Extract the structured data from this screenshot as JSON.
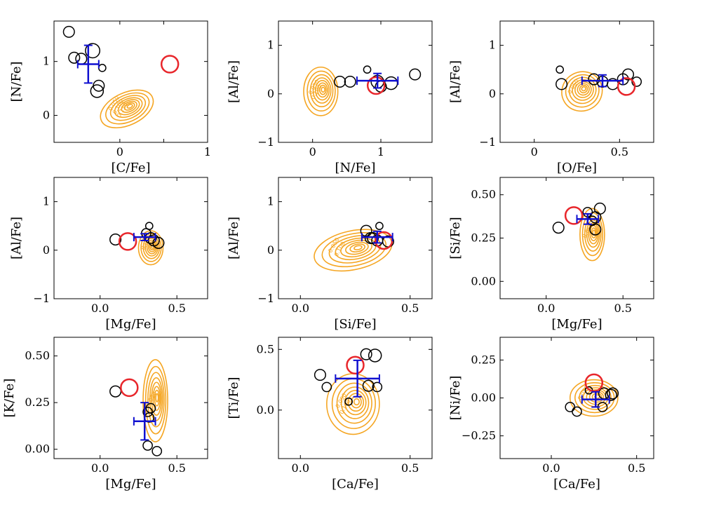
{
  "colors": {
    "contour": "#f5a623",
    "stars": "#000000",
    "highlight": "#e8262b",
    "mean": "#1010d0",
    "frame": "#000000"
  },
  "chart_data": [
    {
      "type": "scatter",
      "xlabel": "[C/Fe]",
      "ylabel": "[N/Fe]",
      "xlim": [
        -0.75,
        1.0
      ],
      "ylim": [
        -0.5,
        1.75
      ],
      "xticks": [
        0,
        0.5,
        1
      ],
      "xticklabels": [
        "0",
        "",
        "1"
      ],
      "yticks": [
        0,
        1
      ],
      "yticklabels": [
        "0",
        "1"
      ],
      "points": [
        {
          "x": -0.58,
          "y": 1.55,
          "size": 0.8
        },
        {
          "x": -0.52,
          "y": 1.07,
          "size": 0.8
        },
        {
          "x": -0.44,
          "y": 1.05,
          "size": 0.8
        },
        {
          "x": -0.31,
          "y": 1.2,
          "size": 1.2
        },
        {
          "x": -0.24,
          "y": 0.55,
          "size": 0.8
        },
        {
          "x": -0.26,
          "y": 0.45,
          "size": 1.0
        },
        {
          "x": -0.2,
          "y": 0.88,
          "size": 0.35
        }
      ],
      "highlight": {
        "x": 0.57,
        "y": 0.95
      },
      "mean": {
        "x": -0.36,
        "y": 0.95,
        "xerr": 0.12,
        "yerr": 0.35
      },
      "contour": {
        "cx": 0.08,
        "cy": 0.12,
        "rx": 0.32,
        "ry": 0.3,
        "angle": -25
      },
      "contour_labels": [
        "0.050",
        "0.100",
        "0.150"
      ]
    },
    {
      "type": "scatter",
      "xlabel": "[N/Fe]",
      "ylabel": "[Al/Fe]",
      "xlim": [
        -0.5,
        1.75
      ],
      "ylim": [
        -1.0,
        1.5
      ],
      "xticks": [
        0,
        1
      ],
      "xticklabels": [
        "0",
        "1"
      ],
      "yticks": [
        -1,
        0,
        1
      ],
      "yticklabels": [
        "−1",
        "0",
        "1"
      ],
      "points": [
        {
          "x": 0.4,
          "y": 0.25,
          "size": 0.8
        },
        {
          "x": 0.55,
          "y": 0.25,
          "size": 0.8
        },
        {
          "x": 0.8,
          "y": 0.5,
          "size": 0.35
        },
        {
          "x": 0.95,
          "y": 0.25,
          "size": 1.0
        },
        {
          "x": 1.0,
          "y": 0.15,
          "size": 0.8
        },
        {
          "x": 1.15,
          "y": 0.22,
          "size": 1.0
        },
        {
          "x": 1.5,
          "y": 0.4,
          "size": 0.8
        }
      ],
      "highlight": {
        "x": 0.93,
        "y": 0.17
      },
      "mean": {
        "x": 0.95,
        "y": 0.27,
        "xerr": 0.3,
        "yerr": 0.15
      },
      "contour": {
        "cx": 0.12,
        "cy": 0.05,
        "rx": 0.25,
        "ry": 0.5,
        "angle": 0
      },
      "contour_labels": [
        "0.050",
        "0.100"
      ]
    },
    {
      "type": "scatter",
      "xlabel": "[O/Fe]",
      "ylabel": "[Al/Fe]",
      "xlim": [
        -0.2,
        0.7
      ],
      "ylim": [
        -1.0,
        1.5
      ],
      "xticks": [
        0,
        0.5
      ],
      "xticklabels": [
        "0",
        "0.5"
      ],
      "yticks": [
        -1,
        0,
        1
      ],
      "yticklabels": [
        "−1",
        "0",
        "1"
      ],
      "points": [
        {
          "x": 0.16,
          "y": 0.2,
          "size": 0.8
        },
        {
          "x": 0.15,
          "y": 0.5,
          "size": 0.35
        },
        {
          "x": 0.35,
          "y": 0.3,
          "size": 0.8
        },
        {
          "x": 0.4,
          "y": 0.25,
          "size": 0.8
        },
        {
          "x": 0.46,
          "y": 0.2,
          "size": 0.8
        },
        {
          "x": 0.52,
          "y": 0.3,
          "size": 0.8
        },
        {
          "x": 0.55,
          "y": 0.4,
          "size": 0.8
        },
        {
          "x": 0.6,
          "y": 0.25,
          "size": 0.6
        }
      ],
      "highlight": {
        "x": 0.54,
        "y": 0.15
      },
      "mean": {
        "x": 0.4,
        "y": 0.27,
        "xerr": 0.12,
        "yerr": 0.12
      },
      "contour": {
        "cx": 0.28,
        "cy": 0.05,
        "rx": 0.12,
        "ry": 0.4,
        "angle": -30
      },
      "contour_labels": [
        "0.050"
      ]
    },
    {
      "type": "scatter",
      "xlabel": "[Mg/Fe]",
      "ylabel": "[Al/Fe]",
      "xlim": [
        -0.3,
        0.7
      ],
      "ylim": [
        -1.0,
        1.5
      ],
      "xticks": [
        0,
        0.5
      ],
      "xticklabels": [
        "0.0",
        "0.5"
      ],
      "yticks": [
        -1,
        0,
        1
      ],
      "yticklabels": [
        "−1",
        "0",
        "1"
      ],
      "points": [
        {
          "x": 0.1,
          "y": 0.22,
          "size": 0.8
        },
        {
          "x": 0.3,
          "y": 0.35,
          "size": 0.6
        },
        {
          "x": 0.32,
          "y": 0.5,
          "size": 0.35
        },
        {
          "x": 0.33,
          "y": 0.25,
          "size": 0.8
        },
        {
          "x": 0.35,
          "y": 0.2,
          "size": 0.8
        },
        {
          "x": 0.38,
          "y": 0.15,
          "size": 0.8
        }
      ],
      "highlight": {
        "x": 0.18,
        "y": 0.18
      },
      "mean": {
        "x": 0.29,
        "y": 0.27,
        "xerr": 0.07,
        "yerr": 0.07
      },
      "contour": {
        "cx": 0.33,
        "cy": 0.05,
        "rx": 0.08,
        "ry": 0.35,
        "angle": 0
      },
      "contour_labels": [
        "0.050"
      ]
    },
    {
      "type": "scatter",
      "xlabel": "[Si/Fe]",
      "ylabel": "[Al/Fe]",
      "xlim": [
        -0.1,
        0.6
      ],
      "ylim": [
        -1.0,
        1.5
      ],
      "xticks": [
        0,
        0.5
      ],
      "xticklabels": [
        "0.0",
        "0.5"
      ],
      "yticks": [
        -1,
        0,
        1
      ],
      "yticklabels": [
        "−1",
        "0",
        "1"
      ],
      "points": [
        {
          "x": 0.3,
          "y": 0.4,
          "size": 0.8
        },
        {
          "x": 0.33,
          "y": 0.25,
          "size": 0.8
        },
        {
          "x": 0.36,
          "y": 0.5,
          "size": 0.35
        },
        {
          "x": 0.35,
          "y": 0.2,
          "size": 0.8
        },
        {
          "x": 0.4,
          "y": 0.18,
          "size": 0.8
        },
        {
          "x": 0.32,
          "y": 0.25,
          "size": 0.8
        }
      ],
      "highlight": {
        "x": 0.38,
        "y": 0.2
      },
      "mean": {
        "x": 0.35,
        "y": 0.27,
        "xerr": 0.07,
        "yerr": 0.12
      },
      "contour": {
        "cx": 0.24,
        "cy": 0.0,
        "rx": 0.18,
        "ry": 0.4,
        "angle": -12
      },
      "contour_labels": [
        "0.050",
        "0.100"
      ]
    },
    {
      "type": "scatter",
      "xlabel": "[Mg/Fe]",
      "ylabel": "[Si/Fe]",
      "xlim": [
        -0.3,
        0.7
      ],
      "ylim": [
        -0.1,
        0.6
      ],
      "xticks": [
        0,
        0.5
      ],
      "xticklabels": [
        "0.0",
        "0.5"
      ],
      "yticks": [
        0,
        0.25,
        0.5
      ],
      "yticklabels": [
        "0.00",
        "0.25",
        "0.50"
      ],
      "points": [
        {
          "x": 0.08,
          "y": 0.31,
          "size": 0.8
        },
        {
          "x": 0.27,
          "y": 0.4,
          "size": 0.6
        },
        {
          "x": 0.3,
          "y": 0.35,
          "size": 0.6
        },
        {
          "x": 0.32,
          "y": 0.3,
          "size": 0.8
        },
        {
          "x": 0.32,
          "y": 0.37,
          "size": 0.8
        },
        {
          "x": 0.35,
          "y": 0.42,
          "size": 0.8
        }
      ],
      "highlight": {
        "x": 0.18,
        "y": 0.38
      },
      "mean": {
        "x": 0.27,
        "y": 0.36,
        "xerr": 0.07,
        "yerr": 0.03
      },
      "contour": {
        "cx": 0.3,
        "cy": 0.27,
        "rx": 0.08,
        "ry": 0.15,
        "angle": 0
      },
      "contour_labels": [
        "0.050"
      ]
    },
    {
      "type": "scatter",
      "xlabel": "[Mg/Fe]",
      "ylabel": "[K/Fe]",
      "xlim": [
        -0.3,
        0.7
      ],
      "ylim": [
        -0.05,
        0.6
      ],
      "xticks": [
        0,
        0.5
      ],
      "xticklabels": [
        "0.0",
        "0.5"
      ],
      "yticks": [
        0,
        0.25,
        0.5
      ],
      "yticklabels": [
        "0.00",
        "0.25",
        "0.50"
      ],
      "points": [
        {
          "x": 0.1,
          "y": 0.31,
          "size": 0.8
        },
        {
          "x": 0.31,
          "y": 0.2,
          "size": 0.6
        },
        {
          "x": 0.32,
          "y": 0.17,
          "size": 0.6
        },
        {
          "x": 0.33,
          "y": 0.22,
          "size": 0.6
        },
        {
          "x": 0.31,
          "y": 0.02,
          "size": 0.6
        },
        {
          "x": 0.37,
          "y": -0.01,
          "size": 0.6
        }
      ],
      "highlight": {
        "x": 0.19,
        "y": 0.33
      },
      "mean": {
        "x": 0.29,
        "y": 0.15,
        "xerr": 0.07,
        "yerr": 0.1
      },
      "contour": {
        "cx": 0.36,
        "cy": 0.26,
        "rx": 0.08,
        "ry": 0.22,
        "angle": 0
      },
      "contour_labels": [
        "0.050"
      ]
    },
    {
      "type": "scatter",
      "xlabel": "[Ca/Fe]",
      "ylabel": "[Ti/Fe]",
      "xlim": [
        -0.1,
        0.6
      ],
      "ylim": [
        -0.4,
        0.6
      ],
      "xticks": [
        0,
        0.5
      ],
      "xticklabels": [
        "0.0",
        "0.5"
      ],
      "yticks": [
        0,
        0.5
      ],
      "yticklabels": [
        "0.0",
        "0.5"
      ],
      "points": [
        {
          "x": 0.09,
          "y": 0.29,
          "size": 0.8
        },
        {
          "x": 0.12,
          "y": 0.19,
          "size": 0.6
        },
        {
          "x": 0.3,
          "y": 0.46,
          "size": 0.8
        },
        {
          "x": 0.34,
          "y": 0.45,
          "size": 1.0
        },
        {
          "x": 0.31,
          "y": 0.2,
          "size": 0.8
        },
        {
          "x": 0.35,
          "y": 0.19,
          "size": 0.6
        },
        {
          "x": 0.22,
          "y": 0.07,
          "size": 0.35
        }
      ],
      "highlight": {
        "x": 0.25,
        "y": 0.37
      },
      "mean": {
        "x": 0.26,
        "y": 0.26,
        "xerr": 0.1,
        "yerr": 0.15
      },
      "contour": {
        "cx": 0.24,
        "cy": 0.05,
        "rx": 0.12,
        "ry": 0.25,
        "angle": 0
      },
      "contour_labels": [
        "0.050",
        "0.100"
      ]
    },
    {
      "type": "scatter",
      "xlabel": "[Ca/Fe]",
      "ylabel": "[Ni/Fe]",
      "xlim": [
        -0.3,
        0.6
      ],
      "ylim": [
        -0.4,
        0.4
      ],
      "xticks": [
        0,
        0.5
      ],
      "xticklabels": [
        "0.0",
        "0.5"
      ],
      "yticks": [
        -0.25,
        0,
        0.25
      ],
      "yticklabels": [
        "−0.25",
        "0.00",
        "0.25"
      ],
      "points": [
        {
          "x": 0.11,
          "y": -0.06,
          "size": 0.6
        },
        {
          "x": 0.15,
          "y": -0.09,
          "size": 0.6
        },
        {
          "x": 0.22,
          "y": 0.05,
          "size": 0.35
        },
        {
          "x": 0.3,
          "y": -0.06,
          "size": 0.6
        },
        {
          "x": 0.31,
          "y": 0.03,
          "size": 0.8
        },
        {
          "x": 0.35,
          "y": 0.02,
          "size": 0.8
        },
        {
          "x": 0.36,
          "y": 0.03,
          "size": 0.8
        }
      ],
      "highlight": {
        "x": 0.25,
        "y": 0.1
      },
      "mean": {
        "x": 0.26,
        "y": -0.01,
        "xerr": 0.08,
        "yerr": 0.05
      },
      "contour": {
        "cx": 0.25,
        "cy": 0.0,
        "rx": 0.14,
        "ry": 0.12,
        "angle": 0
      },
      "contour_labels": [
        "0.050"
      ]
    }
  ]
}
